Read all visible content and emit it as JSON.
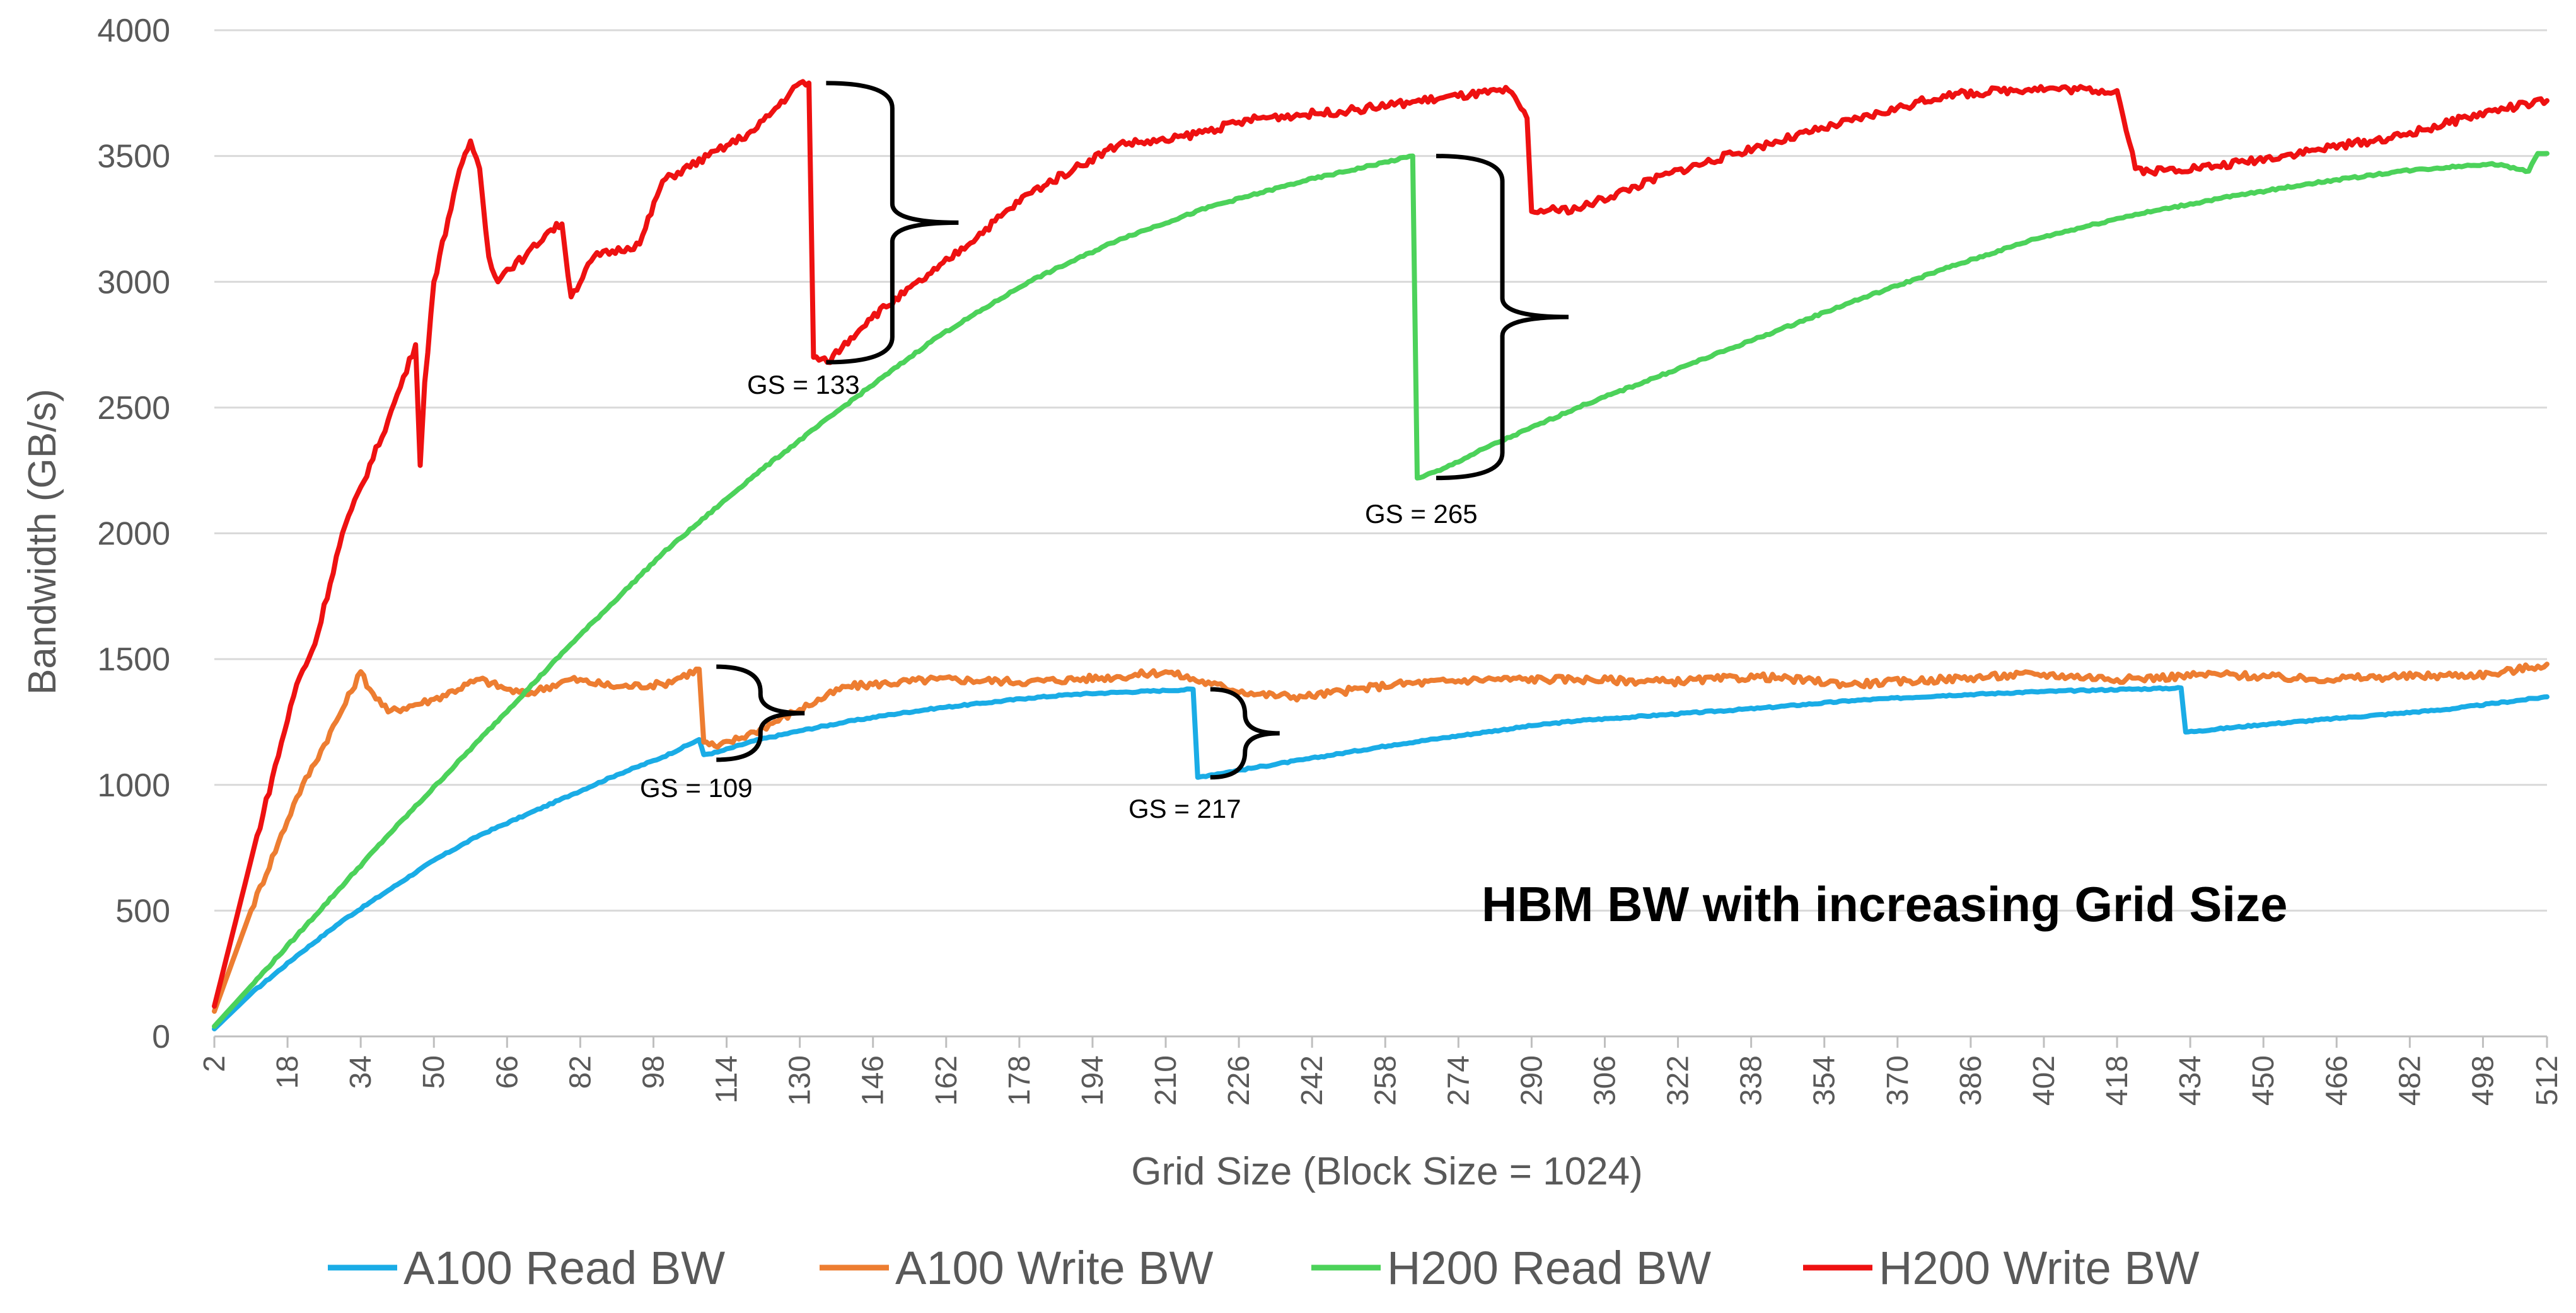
{
  "chart_data": {
    "type": "line",
    "title": "HBM BW with increasing Grid Size",
    "xlabel": "Grid Size (Block Size = 1024)",
    "ylabel": "Bandwidth (GB/s)",
    "xlim": [
      2,
      512
    ],
    "ylim": [
      0,
      4000
    ],
    "y_ticks": [
      0,
      500,
      1000,
      1500,
      2000,
      2500,
      3000,
      3500,
      4000
    ],
    "x_ticks": [
      2,
      18,
      34,
      50,
      66,
      82,
      98,
      114,
      130,
      146,
      162,
      178,
      194,
      210,
      226,
      242,
      258,
      274,
      290,
      306,
      322,
      338,
      354,
      370,
      386,
      402,
      418,
      434,
      450,
      466,
      482,
      498,
      512
    ],
    "grid": "horizontal",
    "legend_position": "bottom",
    "series": [
      {
        "name": "A100 Read BW",
        "color": "#1AACE6",
        "x": [
          2,
          10,
          20,
          30,
          40,
          50,
          60,
          70,
          80,
          90,
          100,
          108,
          109,
          112,
          120,
          130,
          140,
          150,
          160,
          170,
          180,
          190,
          200,
          210,
          216,
          217,
          220,
          230,
          240,
          250,
          260,
          270,
          280,
          290,
          300,
          320,
          340,
          360,
          380,
          400,
          420,
          432,
          433,
          436,
          450,
          470,
          490,
          512
        ],
        "y": [
          30,
          170,
          320,
          460,
          580,
          700,
          800,
          880,
          960,
          1040,
          1110,
          1180,
          1120,
          1130,
          1175,
          1215,
          1250,
          1280,
          1305,
          1325,
          1345,
          1360,
          1368,
          1375,
          1380,
          1030,
          1040,
          1070,
          1100,
          1130,
          1160,
          1185,
          1210,
          1235,
          1255,
          1280,
          1305,
          1335,
          1355,
          1370,
          1380,
          1385,
          1210,
          1215,
          1240,
          1270,
          1300,
          1350
        ]
      },
      {
        "name": "A100 Write BW",
        "color": "#ED7D31",
        "x": [
          2,
          10,
          20,
          30,
          34,
          36,
          40,
          50,
          60,
          66,
          70,
          80,
          90,
          100,
          108,
          109,
          112,
          120,
          130,
          140,
          160,
          180,
          200,
          210,
          220,
          230,
          240,
          260,
          280,
          300,
          320,
          340,
          360,
          380,
          400,
          420,
          440,
          460,
          480,
          500,
          512
        ],
        "y": [
          100,
          500,
          950,
          1300,
          1450,
          1380,
          1290,
          1340,
          1420,
          1380,
          1360,
          1420,
          1390,
          1400,
          1460,
          1170,
          1150,
          1210,
          1300,
          1390,
          1420,
          1410,
          1430,
          1450,
          1400,
          1360,
          1350,
          1400,
          1420,
          1420,
          1410,
          1430,
          1400,
          1420,
          1440,
          1420,
          1440,
          1420,
          1430,
          1440,
          1480
        ]
      },
      {
        "name": "H200 Read BW",
        "color": "#4CD25A",
        "x": [
          2,
          20,
          40,
          60,
          80,
          100,
          120,
          140,
          160,
          180,
          200,
          220,
          240,
          264,
          265,
          270,
          280,
          300,
          320,
          340,
          360,
          380,
          400,
          420,
          440,
          460,
          480,
          500,
          508,
          510,
          512
        ],
        "y": [
          40,
          400,
          800,
          1180,
          1560,
          1920,
          2230,
          2510,
          2780,
          3000,
          3170,
          3300,
          3400,
          3500,
          2220,
          2250,
          2340,
          2500,
          2640,
          2780,
          2920,
          3050,
          3170,
          3260,
          3330,
          3390,
          3440,
          3470,
          3440,
          3510,
          3510
        ]
      },
      {
        "name": "H200 Write BW",
        "color": "#EE1111",
        "x": [
          2,
          10,
          20,
          24,
          30,
          40,
          46,
          47,
          48,
          50,
          55,
          58,
          60,
          62,
          64,
          66,
          70,
          75,
          78,
          80,
          85,
          95,
          100,
          110,
          120,
          130,
          132,
          133,
          136,
          145,
          160,
          180,
          190,
          200,
          210,
          230,
          250,
          270,
          285,
          289,
          290,
          300,
          320,
          340,
          360,
          380,
          400,
          418,
          422,
          425,
          440,
          460,
          480,
          500,
          512
        ],
        "y": [
          120,
          700,
          1400,
          1560,
          2000,
          2450,
          2750,
          2270,
          2600,
          3000,
          3400,
          3560,
          3450,
          3100,
          3000,
          3050,
          3100,
          3200,
          3230,
          2940,
          3100,
          3150,
          3400,
          3500,
          3600,
          3790,
          3790,
          2700,
          2680,
          2850,
          3050,
          3350,
          3450,
          3550,
          3560,
          3650,
          3680,
          3730,
          3760,
          3650,
          3280,
          3290,
          3430,
          3540,
          3640,
          3740,
          3770,
          3760,
          3450,
          3440,
          3460,
          3520,
          3580,
          3680,
          3720
        ]
      }
    ],
    "annotations": [
      {
        "label": "GS = 133",
        "x": 133
      },
      {
        "label": "GS = 265",
        "x": 265
      },
      {
        "label": "GS = 109",
        "x": 109
      },
      {
        "label": "GS = 217",
        "x": 217
      }
    ]
  }
}
